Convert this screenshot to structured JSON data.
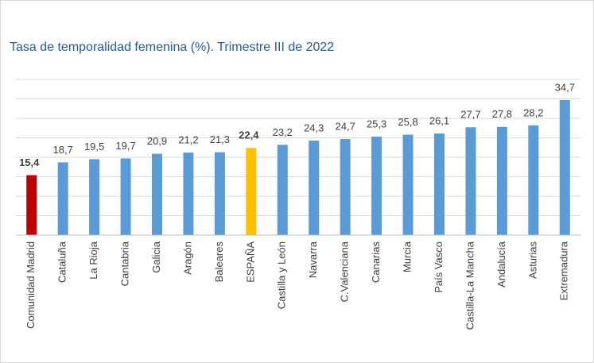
{
  "chart_data": {
    "type": "bar",
    "title": "Tasa de temporalidad femenina (%). Trimestre III de 2022",
    "categories": [
      "Comunidad Madrid",
      "Cataluña",
      "La Rioja",
      "Cantabria",
      "Galicia",
      "Aragón",
      "Baleares",
      "ESPAÑA",
      "Castilla y León",
      "Navarra",
      "C.Valenciana",
      "Canarias",
      "Murcia",
      "País Vasco",
      "Castilla-La Mancha",
      "Andalucía",
      "Asturias",
      "Extremadura"
    ],
    "values": [
      15.4,
      18.7,
      19.5,
      19.7,
      20.9,
      21.2,
      21.3,
      22.4,
      23.2,
      24.3,
      24.7,
      25.3,
      25.8,
      26.1,
      27.7,
      27.8,
      28.2,
      34.7
    ],
    "value_labels": [
      "15,4",
      "18,7",
      "19,5",
      "19,7",
      "20,9",
      "21,2",
      "21,3",
      "22,4",
      "23,2",
      "24,3",
      "24,7",
      "25,3",
      "25,8",
      "26,1",
      "27,7",
      "27,8",
      "28,2",
      "34,7"
    ],
    "color": "#5b9bd5",
    "colors": [
      "#c00000",
      "#5b9bd5",
      "#5b9bd5",
      "#5b9bd5",
      "#5b9bd5",
      "#5b9bd5",
      "#5b9bd5",
      "#ffc000",
      "#5b9bd5",
      "#5b9bd5",
      "#5b9bd5",
      "#5b9bd5",
      "#5b9bd5",
      "#5b9bd5",
      "#5b9bd5",
      "#5b9bd5",
      "#5b9bd5",
      "#5b9bd5"
    ],
    "ylim": [
      0,
      40
    ],
    "yticks": [
      0,
      5,
      10,
      15,
      20,
      25,
      30,
      35,
      40
    ],
    "grid": true
  }
}
